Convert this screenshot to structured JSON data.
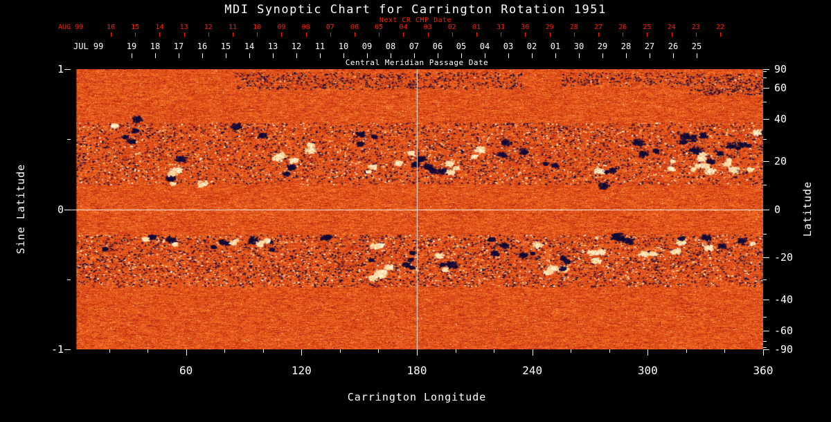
{
  "title": "MDI Synoptic Chart for Carrington Rotation 1951",
  "axes": {
    "next_cr": {
      "label": "Next CR CMP Date",
      "month": "AUG 99",
      "dates": [
        "16",
        "15",
        "14",
        "13",
        "12",
        "11",
        "10",
        "09",
        "08",
        "07",
        "06",
        "05",
        "04",
        "03",
        "02",
        "01",
        "31",
        "30",
        "29",
        "28",
        "27",
        "26",
        "25",
        "24",
        "23",
        "22"
      ],
      "color": "#ff2200"
    },
    "cmp": {
      "label": "Central Meridian Passage Date",
      "month": "JUL 99",
      "dates": [
        "19",
        "18",
        "17",
        "16",
        "15",
        "14",
        "13",
        "12",
        "11",
        "10",
        "09",
        "08",
        "07",
        "06",
        "05",
        "04",
        "03",
        "02",
        "01",
        "30",
        "29",
        "28",
        "27",
        "26",
        "25"
      ]
    },
    "bottom": {
      "label": "Carrington Longitude",
      "major_ticks": [
        60,
        120,
        180,
        240,
        300,
        360
      ],
      "minor_step_deg": 20,
      "range": [
        0,
        360
      ]
    },
    "left": {
      "label": "Sine Latitude",
      "ticks": [
        1,
        0,
        -1
      ],
      "minor_ticks": [
        0.5,
        -0.5
      ],
      "range": [
        -1,
        1
      ]
    },
    "right": {
      "label": "Latitude",
      "ticks": [
        90,
        60,
        40,
        20,
        0,
        -20,
        -40,
        -60,
        -90
      ],
      "minor_ticks": [
        80,
        70,
        50,
        30,
        10,
        -10,
        -30,
        -50,
        -70,
        -80
      ]
    }
  },
  "reference_lines": {
    "longitude_deg": 180,
    "latitude_deg": 0
  },
  "colors": {
    "background": "#000000",
    "foreground": "#ffffff",
    "next_cr_axis": "#ff2200",
    "positive_field": "#ffffee",
    "negative_field": "#0a0a28",
    "quiet_sun": "#e05a1e"
  },
  "chart_data": {
    "type": "heatmap",
    "title": "MDI Synoptic Chart for Carrington Rotation 1951",
    "x": {
      "label": "Carrington Longitude",
      "range": [
        0,
        360
      ],
      "ticks": [
        60,
        120,
        180,
        240,
        300,
        360
      ]
    },
    "y": {
      "label": "Sine Latitude",
      "range": [
        -1,
        1
      ],
      "ticks": [
        1,
        0,
        -1
      ]
    },
    "y2": {
      "label": "Latitude",
      "ticks": [
        90,
        60,
        40,
        20,
        0,
        -20,
        -40,
        -60,
        -90
      ]
    },
    "description": "Full-rotation synoptic map of the line-of-sight photospheric magnetic field. Quiet Sun is mottled orange/red; strong positive flux appears white/yellow, strong negative flux appears dark blue/black. Activity concentrates in two belts near sine-latitude +0.2..0.6 and -0.2..-0.55. White crosshair reference lines at longitude 180 and latitude 0.",
    "data_gap": {
      "lon_range": [
        0,
        3
      ]
    },
    "dispersed_flux_bands": [
      {
        "slat_range": [
          0.18,
          0.62
        ],
        "specks": 5200
      },
      {
        "slat_range": [
          -0.55,
          -0.18
        ],
        "specks": 5200
      }
    ],
    "polar_patches": [
      {
        "lon_range": [
          85,
          235
        ],
        "slat_range": [
          0.86,
          0.98
        ],
        "specks": 800
      },
      {
        "lon_range": [
          255,
          320
        ],
        "slat_range": [
          0.88,
          0.98
        ],
        "specks": 250
      },
      {
        "lon_range": [
          320,
          359
        ],
        "slat_range": [
          0.82,
          0.97
        ],
        "specks": 350
      }
    ],
    "active_regions": [
      {
        "lon": 28,
        "slat": 0.55,
        "dlon": 9,
        "dslat": 0.1,
        "n": 420,
        "pol": "+-"
      },
      {
        "lon": 50,
        "slat": 0.3,
        "dlon": 8,
        "dslat": 0.08,
        "n": 260,
        "pol": "-"
      },
      {
        "lon": 52,
        "slat": 0.22,
        "dlon": 3,
        "dslat": 0.04,
        "n": 90,
        "pol": "+"
      },
      {
        "lon": 67,
        "slat": 0.2,
        "dlon": 3,
        "dslat": 0.04,
        "n": 70,
        "pol": "mix"
      },
      {
        "lon": 92,
        "slat": 0.58,
        "dlon": 8,
        "dslat": 0.07,
        "n": 150,
        "pol": "-"
      },
      {
        "lon": 109,
        "slat": 0.32,
        "dlon": 7,
        "dslat": 0.08,
        "n": 380,
        "pol": "+-"
      },
      {
        "lon": 129,
        "slat": 0.42,
        "dlon": 5,
        "dslat": 0.06,
        "n": 160,
        "pol": "+"
      },
      {
        "lon": 149,
        "slat": 0.52,
        "dlon": 9,
        "dslat": 0.1,
        "n": 240,
        "pol": "-"
      },
      {
        "lon": 158,
        "slat": 0.33,
        "dlon": 6,
        "dslat": 0.07,
        "n": 220,
        "pol": "mix"
      },
      {
        "lon": 178,
        "slat": 0.34,
        "dlon": 8,
        "dslat": 0.08,
        "n": 420,
        "pol": "+-"
      },
      {
        "lon": 191,
        "slat": 0.32,
        "dlon": 5,
        "dslat": 0.06,
        "n": 260,
        "pol": "-"
      },
      {
        "lon": 197,
        "slat": 0.31,
        "dlon": 4,
        "dslat": 0.05,
        "n": 220,
        "pol": "+"
      },
      {
        "lon": 212,
        "slat": 0.41,
        "dlon": 6,
        "dslat": 0.07,
        "n": 260,
        "pol": "+"
      },
      {
        "lon": 230,
        "slat": 0.43,
        "dlon": 6,
        "dslat": 0.07,
        "n": 220,
        "pol": "-"
      },
      {
        "lon": 247,
        "slat": 0.36,
        "dlon": 6,
        "dslat": 0.06,
        "n": 150,
        "pol": "-"
      },
      {
        "lon": 277,
        "slat": 0.23,
        "dlon": 6,
        "dslat": 0.06,
        "n": 300,
        "pol": "mix"
      },
      {
        "lon": 298,
        "slat": 0.43,
        "dlon": 6,
        "dslat": 0.06,
        "n": 250,
        "pol": "-"
      },
      {
        "lon": 313,
        "slat": 0.31,
        "dlon": 4,
        "dslat": 0.05,
        "n": 130,
        "pol": "+"
      },
      {
        "lon": 322,
        "slat": 0.48,
        "dlon": 7,
        "dslat": 0.08,
        "n": 450,
        "pol": "-"
      },
      {
        "lon": 331,
        "slat": 0.33,
        "dlon": 8,
        "dslat": 0.08,
        "n": 600,
        "pol": "+"
      },
      {
        "lon": 347,
        "slat": 0.31,
        "dlon": 7,
        "dslat": 0.07,
        "n": 450,
        "pol": "+"
      },
      {
        "lon": 349,
        "slat": 0.46,
        "dlon": 6,
        "dslat": 0.06,
        "n": 280,
        "pol": "-"
      },
      {
        "lon": 356,
        "slat": 0.6,
        "dlon": 5,
        "dslat": 0.06,
        "n": 140,
        "pol": "-"
      },
      {
        "lon": 31,
        "slat": -0.28,
        "dlon": 14,
        "dslat": 0.09,
        "n": 260,
        "pol": "-"
      },
      {
        "lon": 56,
        "slat": -0.24,
        "dlon": 5,
        "dslat": 0.06,
        "n": 160,
        "pol": "mix"
      },
      {
        "lon": 76,
        "slat": -0.23,
        "dlon": 6,
        "dslat": 0.06,
        "n": 240,
        "pol": "-"
      },
      {
        "lon": 84,
        "slat": -0.22,
        "dlon": 3,
        "dslat": 0.04,
        "n": 90,
        "pol": "+"
      },
      {
        "lon": 101,
        "slat": -0.26,
        "dlon": 7,
        "dslat": 0.07,
        "n": 360,
        "pol": "+-"
      },
      {
        "lon": 131,
        "slat": -0.21,
        "dlon": 6,
        "dslat": 0.06,
        "n": 170,
        "pol": "-"
      },
      {
        "lon": 158,
        "slat": -0.3,
        "dlon": 5,
        "dslat": 0.06,
        "n": 200,
        "pol": "+"
      },
      {
        "lon": 161,
        "slat": -0.5,
        "dlon": 7,
        "dslat": 0.09,
        "n": 500,
        "pol": "+"
      },
      {
        "lon": 181,
        "slat": -0.36,
        "dlon": 7,
        "dslat": 0.07,
        "n": 300,
        "pol": "mix"
      },
      {
        "lon": 196,
        "slat": -0.37,
        "dlon": 6,
        "dslat": 0.06,
        "n": 350,
        "pol": "+-"
      },
      {
        "lon": 220,
        "slat": -0.26,
        "dlon": 6,
        "dslat": 0.06,
        "n": 260,
        "pol": "-"
      },
      {
        "lon": 241,
        "slat": -0.29,
        "dlon": 6,
        "dslat": 0.06,
        "n": 200,
        "pol": "mix"
      },
      {
        "lon": 254,
        "slat": -0.4,
        "dlon": 8,
        "dslat": 0.07,
        "n": 500,
        "pol": "+-"
      },
      {
        "lon": 274,
        "slat": -0.31,
        "dlon": 6,
        "dslat": 0.06,
        "n": 260,
        "pol": "+"
      },
      {
        "lon": 287,
        "slat": -0.24,
        "dlon": 6,
        "dslat": 0.06,
        "n": 340,
        "pol": "-"
      },
      {
        "lon": 301,
        "slat": -0.27,
        "dlon": 4,
        "dslat": 0.05,
        "n": 130,
        "pol": "+"
      },
      {
        "lon": 312,
        "slat": -0.24,
        "dlon": 6,
        "dslat": 0.06,
        "n": 250,
        "pol": "-+"
      },
      {
        "lon": 334,
        "slat": -0.22,
        "dlon": 6,
        "dslat": 0.06,
        "n": 230,
        "pol": "mix"
      },
      {
        "lon": 350,
        "slat": -0.28,
        "dlon": 5,
        "dslat": 0.06,
        "n": 130,
        "pol": "mix"
      }
    ]
  }
}
